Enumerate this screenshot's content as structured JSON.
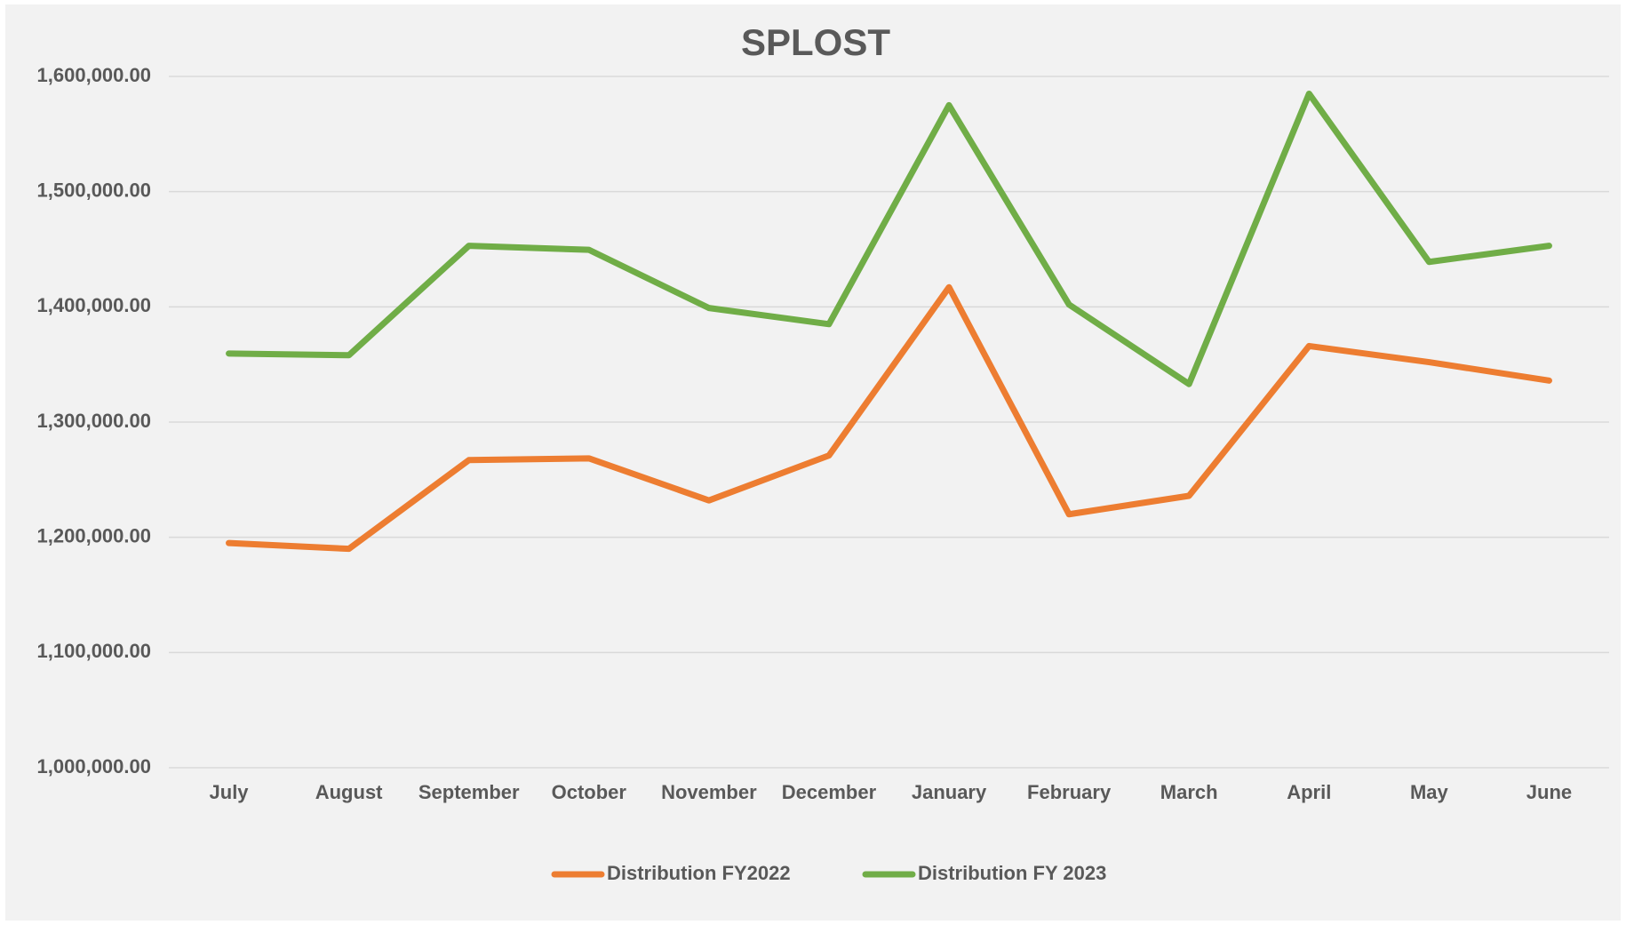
{
  "chart_data": {
    "type": "line",
    "title": "SPLOST",
    "categories": [
      "July",
      "August",
      "September",
      "October",
      "November",
      "December",
      "January",
      "February",
      "March",
      "April",
      "May",
      "June"
    ],
    "series": [
      {
        "name": "Distribution FY2022",
        "color": "#ed7d31",
        "values": [
          1195000,
          1190000,
          1267000,
          1268500,
          1232000,
          1271000,
          1417000,
          1220000,
          1236000,
          1366000,
          1352000,
          1336000
        ]
      },
      {
        "name": "Distribution FY 2023",
        "color": "#70ad47",
        "values": [
          1359500,
          1358000,
          1453000,
          1449500,
          1399000,
          1385000,
          1575000,
          1402000,
          1333000,
          1585000,
          1439000,
          1453000
        ]
      }
    ],
    "ylim": [
      1000000,
      1600000
    ],
    "yticks": [
      {
        "value": 1000000,
        "label": "1,000,000.00"
      },
      {
        "value": 1100000,
        "label": "1,100,000.00"
      },
      {
        "value": 1200000,
        "label": "1,200,000.00"
      },
      {
        "value": 1300000,
        "label": "1,300,000.00"
      },
      {
        "value": 1400000,
        "label": "1,400,000.00"
      },
      {
        "value": 1500000,
        "label": "1,500,000.00"
      },
      {
        "value": 1600000,
        "label": "1,600,000.00"
      }
    ],
    "grid": true,
    "legend": "bottom"
  }
}
